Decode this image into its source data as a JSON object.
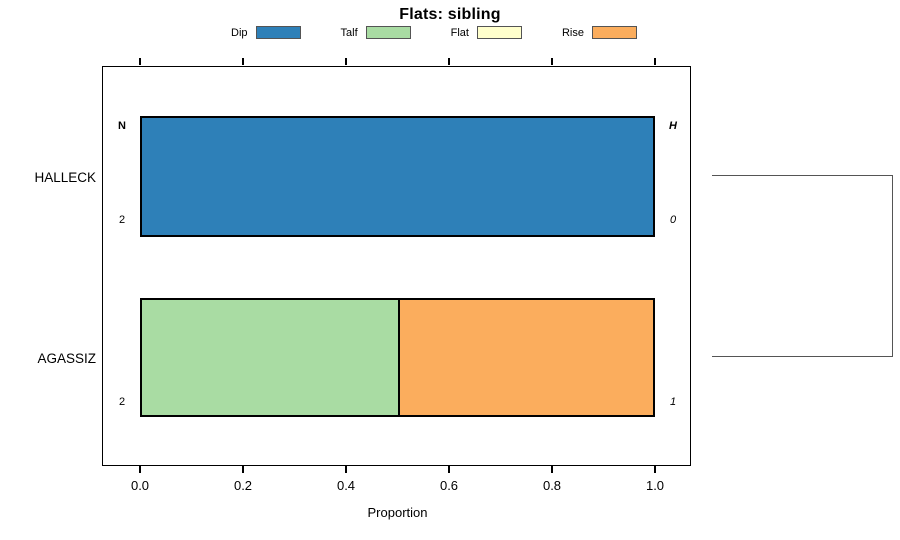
{
  "title": "Flats: sibling",
  "legend": {
    "items": [
      {
        "label": "Dip",
        "color": "#2E80B8"
      },
      {
        "label": "Talf",
        "color": "#A9DCA3"
      },
      {
        "label": "Flat",
        "color": "#FFFFCC"
      },
      {
        "label": "Rise",
        "color": "#FBAD5D"
      }
    ]
  },
  "plot": {
    "rows": [
      {
        "name": "HALLECK",
        "segments": [
          {
            "category": "Dip",
            "value": 1.0,
            "color": "#2E80B8"
          }
        ],
        "annotations": {
          "left_top": "N",
          "left_bottom": "2",
          "right_top": "H",
          "right_bottom": "0"
        }
      },
      {
        "name": "AGASSIZ",
        "segments": [
          {
            "category": "Talf",
            "value": 0.5,
            "color": "#A9DCA3"
          },
          {
            "category": "Rise",
            "value": 0.5,
            "color": "#FBAD5D"
          }
        ],
        "annotations": {
          "left_bottom": "2",
          "right_bottom": "1"
        }
      }
    ]
  },
  "x_axis": {
    "label": "Proportion",
    "ticks": [
      "0.0",
      "0.2",
      "0.4",
      "0.6",
      "0.8",
      "1.0"
    ]
  },
  "chart_data": {
    "type": "bar",
    "orientation": "horizontal",
    "stacked": true,
    "title": "Flats: sibling",
    "xlabel": "Proportion",
    "ylabel": "",
    "xlim": [
      0,
      1
    ],
    "x_ticks": [
      0.0,
      0.2,
      0.4,
      0.6,
      0.8,
      1.0
    ],
    "grid": false,
    "legend_position": "top",
    "categories": [
      "HALLECK",
      "AGASSIZ"
    ],
    "series": [
      {
        "name": "Dip",
        "color": "#2E80B8",
        "values": [
          1.0,
          0.0
        ]
      },
      {
        "name": "Talf",
        "color": "#A9DCA3",
        "values": [
          0.0,
          0.5
        ]
      },
      {
        "name": "Flat",
        "color": "#FFFFCC",
        "values": [
          0.0,
          0.0
        ]
      },
      {
        "name": "Rise",
        "color": "#FBAD5D",
        "values": [
          0.0,
          0.5
        ]
      }
    ],
    "bar_annotations": [
      {
        "category": "HALLECK",
        "left_top": "N",
        "left_bottom": "2",
        "right_top": "H",
        "right_bottom": "0"
      },
      {
        "category": "AGASSIZ",
        "left_bottom": "2",
        "right_bottom": "1"
      }
    ],
    "right_margin_bracket": "gray bracket joining HALLECK and AGASSIZ row centers"
  }
}
